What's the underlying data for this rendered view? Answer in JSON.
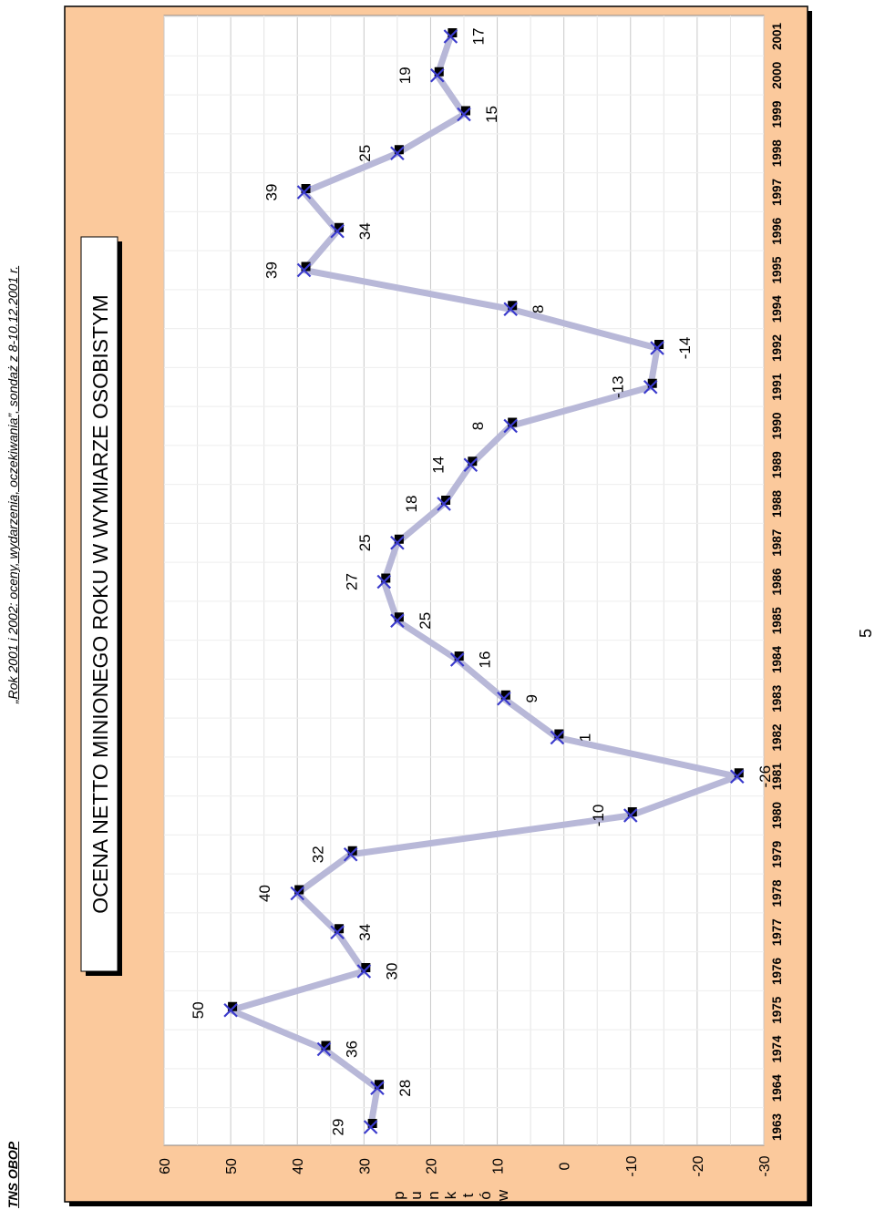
{
  "header": {
    "left": "TNS OBOP",
    "right": "„Rok 2001 i 2002: oceny, wydarzenia, oczekiwania”, sondaż z 8-10.12.2001 r."
  },
  "page_number": "5",
  "colors": {
    "panel_background": "#FBC99C",
    "plot_background": "#FFFFFF",
    "line": "#B8B8D8",
    "marker_x": "#3A3ACC",
    "marker_square": "#000000",
    "gridline": "#C8C8C8"
  },
  "chart_data": {
    "type": "line",
    "title": "OCENA NETTO MINIONEGO ROKU W WYMIARZE OSOBISTYM",
    "ylabel": "punktów",
    "ylabel_letters": [
      "p",
      "u",
      "n",
      "k",
      "t",
      "ó",
      "w"
    ],
    "xlabel": "",
    "ylim": [
      -30,
      60
    ],
    "y_ticks": [
      "60",
      "50",
      "40",
      "30",
      "20",
      "10",
      "0",
      "-10",
      "-20",
      "-30"
    ],
    "grid": true,
    "legend": "none",
    "orientation": "rotated-90",
    "x": [
      "1963",
      "1964",
      "1974",
      "1975",
      "1976",
      "1977",
      "1978",
      "1979",
      "1980",
      "1981",
      "1982",
      "1983",
      "1984",
      "1985",
      "1986",
      "1987",
      "1988",
      "1989",
      "1990",
      "1991",
      "1992",
      "1994",
      "1995",
      "1996",
      "1997",
      "1998",
      "1999",
      "2000",
      "2001"
    ],
    "values": [
      29,
      28,
      36,
      50,
      30,
      34,
      40,
      32,
      -10,
      -26,
      1,
      9,
      16,
      25,
      27,
      25,
      18,
      14,
      8,
      -13,
      -14,
      8,
      39,
      34,
      39,
      25,
      15,
      19,
      17
    ],
    "data_labels": [
      "29",
      "28",
      "36",
      "50",
      "30",
      "34",
      "40",
      "32",
      "-10",
      "-26",
      "1",
      "9",
      "16",
      "25",
      "27",
      "25",
      "18",
      "14",
      "8",
      "-13",
      "-14",
      "8",
      "39",
      "34",
      "39",
      "25",
      "15",
      "19",
      "17"
    ]
  }
}
